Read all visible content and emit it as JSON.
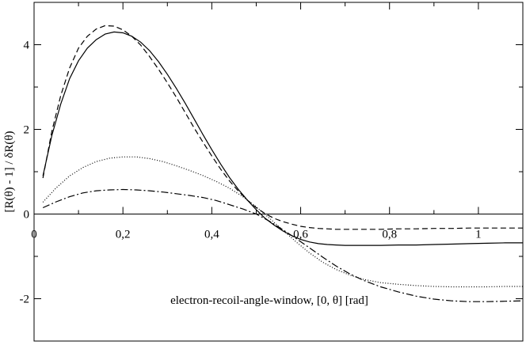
{
  "chart_data": {
    "type": "line",
    "title": "",
    "xlabel": "electron-recoil-angle-window, [0, θ] [rad]",
    "ylabel": "[R(θ) - 1] / δR(θ)",
    "xlim": [
      0,
      1.1
    ],
    "ylim": [
      -3.0,
      5.0
    ],
    "grid": false,
    "legend": "none",
    "x_ticks": [
      0,
      0.2,
      0.4,
      0.6,
      0.8,
      1
    ],
    "x_tick_labels": [
      "0",
      "0,2",
      "0,4",
      "0,6",
      "0,8",
      "1"
    ],
    "y_ticks": [
      -2,
      0,
      2,
      4
    ],
    "y_tick_labels": [
      "-2",
      "0",
      "2",
      "4"
    ],
    "x_zero_line": true,
    "series": [
      {
        "style": "solid",
        "color": "#000000",
        "x": [
          0.02,
          0.04,
          0.06,
          0.08,
          0.1,
          0.12,
          0.14,
          0.16,
          0.18,
          0.2,
          0.22,
          0.24,
          0.26,
          0.28,
          0.3,
          0.32,
          0.34,
          0.36,
          0.38,
          0.4,
          0.42,
          0.44,
          0.46,
          0.48,
          0.5,
          0.52,
          0.54,
          0.56,
          0.58,
          0.6,
          0.62,
          0.64,
          0.66,
          0.68,
          0.7,
          0.74,
          0.78,
          0.82,
          0.86,
          0.9,
          0.94,
          0.98,
          1.02,
          1.06,
          1.1
        ],
        "y": [
          0.9,
          1.85,
          2.6,
          3.2,
          3.62,
          3.92,
          4.12,
          4.25,
          4.3,
          4.28,
          4.2,
          4.06,
          3.86,
          3.6,
          3.3,
          2.97,
          2.62,
          2.25,
          1.88,
          1.52,
          1.18,
          0.86,
          0.58,
          0.33,
          0.1,
          -0.1,
          -0.26,
          -0.4,
          -0.51,
          -0.6,
          -0.66,
          -0.7,
          -0.72,
          -0.73,
          -0.74,
          -0.74,
          -0.74,
          -0.73,
          -0.73,
          -0.72,
          -0.71,
          -0.7,
          -0.69,
          -0.68,
          -0.68
        ]
      },
      {
        "style": "dashed",
        "color": "#000000",
        "x": [
          0.02,
          0.04,
          0.06,
          0.08,
          0.1,
          0.12,
          0.14,
          0.16,
          0.18,
          0.2,
          0.22,
          0.24,
          0.26,
          0.28,
          0.3,
          0.32,
          0.34,
          0.36,
          0.38,
          0.4,
          0.42,
          0.44,
          0.46,
          0.48,
          0.5,
          0.52,
          0.54,
          0.56,
          0.58,
          0.6,
          0.62,
          0.64,
          0.66,
          0.68,
          0.7,
          0.74,
          0.78,
          0.82,
          0.86,
          0.9,
          0.94,
          0.98,
          1.02,
          1.06,
          1.1
        ],
        "y": [
          0.85,
          1.95,
          2.8,
          3.45,
          3.92,
          4.2,
          4.37,
          4.45,
          4.44,
          4.35,
          4.2,
          3.99,
          3.72,
          3.42,
          3.1,
          2.76,
          2.4,
          2.04,
          1.7,
          1.37,
          1.06,
          0.78,
          0.54,
          0.33,
          0.15,
          0.01,
          -0.1,
          -0.18,
          -0.24,
          -0.29,
          -0.32,
          -0.34,
          -0.35,
          -0.36,
          -0.36,
          -0.36,
          -0.36,
          -0.35,
          -0.35,
          -0.34,
          -0.34,
          -0.33,
          -0.33,
          -0.33,
          -0.33
        ]
      },
      {
        "style": "dotted",
        "color": "#000000",
        "x": [
          0.02,
          0.05,
          0.08,
          0.11,
          0.14,
          0.17,
          0.2,
          0.23,
          0.26,
          0.29,
          0.32,
          0.35,
          0.38,
          0.41,
          0.44,
          0.47,
          0.5,
          0.53,
          0.56,
          0.59,
          0.62,
          0.65,
          0.68,
          0.71,
          0.74,
          0.78,
          0.82,
          0.86,
          0.9,
          0.94,
          0.98,
          1.02,
          1.06,
          1.1
        ],
        "y": [
          0.28,
          0.62,
          0.9,
          1.1,
          1.24,
          1.32,
          1.35,
          1.35,
          1.31,
          1.24,
          1.14,
          1.03,
          0.91,
          0.77,
          0.61,
          0.41,
          0.17,
          -0.1,
          -0.38,
          -0.66,
          -0.92,
          -1.14,
          -1.31,
          -1.44,
          -1.54,
          -1.62,
          -1.66,
          -1.69,
          -1.71,
          -1.72,
          -1.72,
          -1.72,
          -1.71,
          -1.71
        ]
      },
      {
        "style": "dashdot",
        "color": "#000000",
        "x": [
          0.02,
          0.05,
          0.08,
          0.11,
          0.14,
          0.17,
          0.2,
          0.23,
          0.26,
          0.29,
          0.32,
          0.35,
          0.38,
          0.41,
          0.44,
          0.47,
          0.5,
          0.53,
          0.56,
          0.59,
          0.62,
          0.65,
          0.68,
          0.71,
          0.74,
          0.78,
          0.82,
          0.86,
          0.9,
          0.94,
          0.98,
          1.02,
          1.06,
          1.1
        ],
        "y": [
          0.15,
          0.29,
          0.41,
          0.5,
          0.55,
          0.57,
          0.58,
          0.57,
          0.55,
          0.52,
          0.48,
          0.44,
          0.39,
          0.32,
          0.22,
          0.12,
          0.0,
          -0.17,
          -0.37,
          -0.58,
          -0.8,
          -1.02,
          -1.23,
          -1.41,
          -1.56,
          -1.72,
          -1.84,
          -1.94,
          -2.01,
          -2.05,
          -2.07,
          -2.07,
          -2.06,
          -2.05
        ]
      }
    ]
  }
}
